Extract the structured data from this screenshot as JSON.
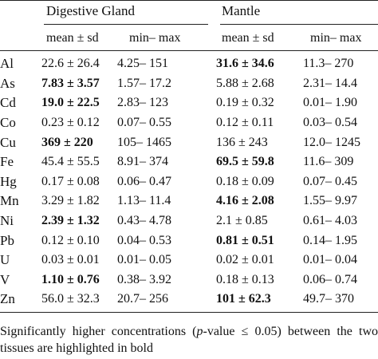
{
  "header": {
    "group1": "Digestive Gland",
    "group2": "Mantle",
    "col_mean_sd": "mean ± sd",
    "col_min_max": "min– max"
  },
  "rows": [
    {
      "el": "Al",
      "dg_mean": "22.6 ± 26.4",
      "dg_range": "4.25– 151",
      "m_mean": "31.6 ± 34.6",
      "m_range": "11.3– 270",
      "bold": "m"
    },
    {
      "el": "As",
      "dg_mean": "7.83 ± 3.57",
      "dg_range": "1.57– 17.2",
      "m_mean": "5.88 ± 2.68",
      "m_range": "2.31– 14.4",
      "bold": "dg"
    },
    {
      "el": "Cd",
      "dg_mean": "19.0 ± 22.5",
      "dg_range": "2.83– 123",
      "m_mean": "0.19 ± 0.32",
      "m_range": "0.01– 1.90",
      "bold": "dg"
    },
    {
      "el": "Co",
      "dg_mean": "0.23 ± 0.12",
      "dg_range": "0.07– 0.55",
      "m_mean": "0.12 ± 0.11",
      "m_range": "0.03– 0.54",
      "bold": ""
    },
    {
      "el": "Cu",
      "dg_mean": "369 ± 220",
      "dg_range": "105– 1465",
      "m_mean": "136 ± 243",
      "m_range": "12.0– 1245",
      "bold": "dg"
    },
    {
      "el": "Fe",
      "dg_mean": "45.4 ± 55.5",
      "dg_range": "8.91– 374",
      "m_mean": "69.5 ± 59.8",
      "m_range": "11.6– 309",
      "bold": "m"
    },
    {
      "el": "Hg",
      "dg_mean": "0.17 ± 0.08",
      "dg_range": "0.06– 0.47",
      "m_mean": "0.18 ± 0.09",
      "m_range": "0.07– 0.45",
      "bold": ""
    },
    {
      "el": "Mn",
      "dg_mean": "3.29 ± 1.82",
      "dg_range": "1.13– 11.4",
      "m_mean": "4.16 ± 2.08",
      "m_range": "1.55– 9.97",
      "bold": "m"
    },
    {
      "el": "Ni",
      "dg_mean": "2.39 ± 1.32",
      "dg_range": "0.43– 4.78",
      "m_mean": "2.1 ± 0.85",
      "m_range": "0.61– 4.03",
      "bold": "dg"
    },
    {
      "el": "Pb",
      "dg_mean": "0.12 ± 0.10",
      "dg_range": "0.04– 0.53",
      "m_mean": "0.81 ± 0.51",
      "m_range": "0.14– 1.95",
      "bold": "m"
    },
    {
      "el": "U",
      "dg_mean": "0.03 ± 0.01",
      "dg_range": "0.01– 0.05",
      "m_mean": "0.02 ± 0.01",
      "m_range": "0.01– 0.04",
      "bold": ""
    },
    {
      "el": "V",
      "dg_mean": "1.10 ± 0.76",
      "dg_range": "0.38– 3.92",
      "m_mean": "0.18 ± 0.13",
      "m_range": "0.06– 0.74",
      "bold": "dg"
    },
    {
      "el": "Zn",
      "dg_mean": "56.0 ± 32.3",
      "dg_range": "20.7– 256",
      "m_mean": "101 ± 62.3",
      "m_range": "49.7– 370",
      "bold": "m"
    }
  ],
  "footnote": {
    "part1": "Significantly higher concentrations (",
    "italic": "p",
    "part2": "-value ≤ 0.05) between the two tissues are highlighted in bold"
  }
}
